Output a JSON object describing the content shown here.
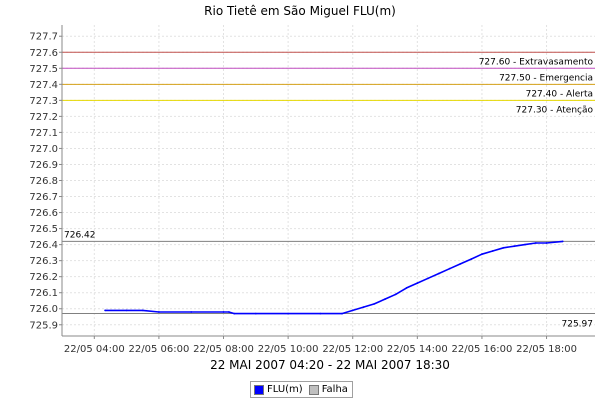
{
  "chart_data": {
    "type": "line",
    "title": "Rio Tietê em São Miguel FLU(m)",
    "subtitle": "22 MAI 2007 04:20 - 22 MAI 2007 18:30",
    "xlabel": "",
    "ylabel": "",
    "x_start": "22/05 03:00",
    "x_end": "22/05 19:30",
    "x_ticks": [
      "22/05 04:00",
      "22/05 06:00",
      "22/05 08:00",
      "22/05 10:00",
      "22/05 12:00",
      "22/05 14:00",
      "22/05 16:00",
      "22/05 18:00"
    ],
    "ylim": [
      725.83,
      727.77
    ],
    "y_ticks": [
      725.9,
      726.0,
      726.1,
      726.2,
      726.3,
      726.4,
      726.5,
      726.6,
      726.7,
      726.8,
      726.9,
      727.0,
      727.1,
      727.2,
      727.3,
      727.4,
      727.5,
      727.6,
      727.7
    ],
    "grid": true,
    "legend_position": "bottom-center",
    "thresholds": [
      {
        "value": 727.6,
        "label": "727.60 - Extravasamento",
        "color": "#c0504d"
      },
      {
        "value": 727.5,
        "label": "727.50 - Emergencia",
        "color": "#c04dc0"
      },
      {
        "value": 727.4,
        "label": "727.40 - Alerta",
        "color": "#d4a017"
      },
      {
        "value": 727.3,
        "label": "727.30 - Atenção",
        "color": "#e6d800"
      }
    ],
    "max_line": {
      "value": 726.42,
      "label": "726.42",
      "color": "#808080"
    },
    "min_line": {
      "value": 725.97,
      "label": "725.97",
      "color": "#808080"
    },
    "series": [
      {
        "name": "FLU(m)",
        "color": "#0000ff",
        "points": [
          [
            "22/05 04:20",
            725.99
          ],
          [
            "22/05 05:00",
            725.99
          ],
          [
            "22/05 05:30",
            725.99
          ],
          [
            "22/05 06:00",
            725.98
          ],
          [
            "22/05 07:00",
            725.98
          ],
          [
            "22/05 08:00",
            725.98
          ],
          [
            "22/05 08:10",
            725.98
          ],
          [
            "22/05 08:20",
            725.97
          ],
          [
            "22/05 09:00",
            725.97
          ],
          [
            "22/05 10:00",
            725.97
          ],
          [
            "22/05 11:00",
            725.97
          ],
          [
            "22/05 11:40",
            725.97
          ],
          [
            "22/05 12:00",
            725.99
          ],
          [
            "22/05 12:20",
            726.01
          ],
          [
            "22/05 12:40",
            726.03
          ],
          [
            "22/05 13:00",
            726.06
          ],
          [
            "22/05 13:20",
            726.09
          ],
          [
            "22/05 13:40",
            726.13
          ],
          [
            "22/05 14:00",
            726.16
          ],
          [
            "22/05 14:20",
            726.19
          ],
          [
            "22/05 14:40",
            726.22
          ],
          [
            "22/05 15:00",
            726.25
          ],
          [
            "22/05 15:20",
            726.28
          ],
          [
            "22/05 15:40",
            726.31
          ],
          [
            "22/05 16:00",
            726.34
          ],
          [
            "22/05 16:20",
            726.36
          ],
          [
            "22/05 16:40",
            726.38
          ],
          [
            "22/05 17:00",
            726.39
          ],
          [
            "22/05 17:20",
            726.4
          ],
          [
            "22/05 17:40",
            726.41
          ],
          [
            "22/05 18:00",
            726.41
          ],
          [
            "22/05 18:30",
            726.42
          ]
        ]
      },
      {
        "name": "Falha",
        "color": "#c0c0c0",
        "points": []
      }
    ]
  },
  "legend": {
    "items": [
      {
        "label": "FLU(m)",
        "color": "#0000ff"
      },
      {
        "label": "Falha",
        "color": "#c0c0c0"
      }
    ]
  }
}
